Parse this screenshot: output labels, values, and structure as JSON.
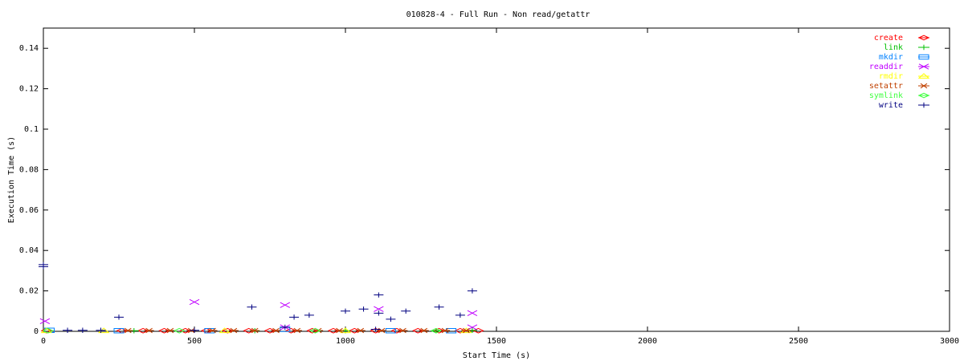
{
  "chart_data": {
    "type": "scatter",
    "title": "010828-4 - Full Run - Non read/getattr",
    "x_label": "Start Time (s)",
    "y_label": "Execution Time (s)",
    "xlim": [
      0,
      3000
    ],
    "xticks": [
      0,
      500,
      1000,
      1500,
      2000,
      2500,
      3000
    ],
    "ylim": [
      0,
      0.15
    ],
    "yticks": [
      0,
      0.02,
      0.04,
      0.06,
      0.08,
      0.1,
      0.12,
      0.14
    ],
    "legend": "top-right",
    "series": [
      {
        "name": "create",
        "color": "#ff0000",
        "x": [
          10,
          260,
          330,
          400,
          470,
          540,
          610,
          680,
          750,
          820,
          890,
          960,
          1030,
          1100,
          1170,
          1240,
          1310,
          1380,
          1440
        ],
        "values": [
          0.0003,
          0.0003,
          0.0003,
          0.0003,
          0.0003,
          0.0003,
          0.0003,
          0.0003,
          0.0003,
          0.0003,
          0.0003,
          0.0003,
          0.0003,
          0.0003,
          0.0003,
          0.0003,
          0.0003,
          0.0003,
          0.0003
        ]
      },
      {
        "name": "link",
        "color": "#00c000",
        "x": [
          300,
          700,
          1000,
          1300,
          1420
        ],
        "values": [
          0.0003,
          0.0003,
          0.0003,
          0.0003,
          0.0005
        ]
      },
      {
        "name": "mkdir",
        "color": "#0080ff",
        "x": [
          20,
          250,
          550,
          800,
          1150,
          1350
        ],
        "values": [
          0.0005,
          0.0003,
          0.0003,
          0.001,
          0.0003,
          0.0003
        ]
      },
      {
        "name": "readdir",
        "color": "#c000ff",
        "x": [
          5,
          500,
          800,
          800,
          1110,
          1420,
          1420
        ],
        "values": [
          0.005,
          0.0145,
          0.013,
          0.002,
          0.011,
          0.009,
          0.002
        ]
      },
      {
        "name": "rmdir",
        "color": "#ffff00",
        "x": [
          10,
          200,
          600,
          1000,
          1400
        ],
        "values": [
          0.0003,
          0.0003,
          0.0003,
          0.0003,
          0.0003
        ]
      },
      {
        "name": "setattr",
        "color": "#c04000",
        "x": [
          280,
          350,
          420,
          490,
          560,
          630,
          700,
          770,
          840,
          910,
          980,
          1050,
          1120,
          1190,
          1260,
          1330,
          1400
        ],
        "values": [
          0.0004,
          0.0004,
          0.0004,
          0.0004,
          0.0004,
          0.0004,
          0.0004,
          0.0004,
          0.0004,
          0.0004,
          0.0004,
          0.0004,
          0.0004,
          0.0004,
          0.0004,
          0.0004,
          0.0004
        ]
      },
      {
        "name": "symlink",
        "color": "#40ff40",
        "x": [
          15,
          450,
          900,
          1300
        ],
        "values": [
          0.0003,
          0.0003,
          0.0003,
          0.0003
        ]
      },
      {
        "name": "write",
        "color": "#000080",
        "x": [
          0,
          0,
          80,
          130,
          190,
          250,
          500,
          690,
          800,
          830,
          880,
          1000,
          1060,
          1100,
          1110,
          1110,
          1150,
          1200,
          1310,
          1380,
          1420
        ],
        "values": [
          0.033,
          0.032,
          0.0005,
          0.0005,
          0.0005,
          0.007,
          0.0005,
          0.012,
          0.002,
          0.007,
          0.008,
          0.01,
          0.011,
          0.001,
          0.018,
          0.009,
          0.006,
          0.01,
          0.012,
          0.008,
          0.02
        ]
      }
    ]
  }
}
